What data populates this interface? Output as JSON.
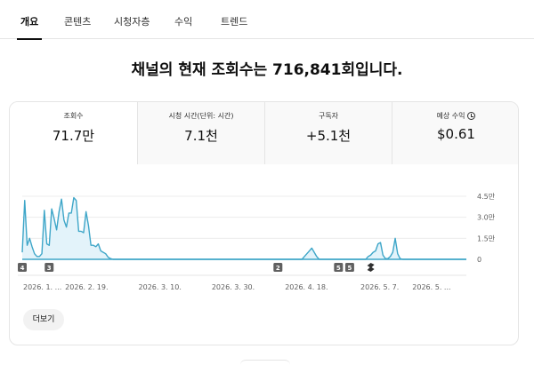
{
  "tabs": [
    {
      "label": "개요",
      "active": true
    },
    {
      "label": "콘텐츠",
      "active": false
    },
    {
      "label": "시청자층",
      "active": false
    },
    {
      "label": "수익",
      "active": false
    },
    {
      "label": "트렌드",
      "active": false
    }
  ],
  "headline": "채널의 현재 조회수는 716,841회입니다.",
  "metrics": [
    {
      "label": "조회수",
      "value": "71.7만",
      "selected": true
    },
    {
      "label": "시청 시간(단위: 시간)",
      "value": "7.1천",
      "selected": false
    },
    {
      "label": "구독자",
      "value": "+5.1천",
      "selected": false
    },
    {
      "label": "예상 수익",
      "value": "$0.61",
      "selected": false,
      "icon": "clock-icon"
    }
  ],
  "chart_data": {
    "type": "area",
    "y_ticks": [
      {
        "label": "4.5만",
        "value": 45000
      },
      {
        "label": "3.0만",
        "value": 30000
      },
      {
        "label": "1.5만",
        "value": 15000
      },
      {
        "label": "0",
        "value": 0
      }
    ],
    "ylim": [
      0,
      45000
    ],
    "x_labels": [
      "2026. 1. ...",
      "2026. 2. 19.",
      "2026. 3. 10.",
      "2026. 3. 30.",
      "2026. 4. 18.",
      "2026. 5. 7.",
      "2026. 5. ..."
    ],
    "x_label_positions": [
      0.015,
      0.145,
      0.31,
      0.475,
      0.64,
      0.805,
      0.965
    ],
    "series": [
      {
        "values": [
          5000,
          42000,
          10000,
          15000,
          9000,
          4000,
          2000,
          2000,
          4000,
          35000,
          11000,
          10000,
          36000,
          29000,
          21000,
          34000,
          43000,
          28000,
          23000,
          33000,
          33000,
          44000,
          42000,
          20000,
          20000,
          19000,
          34000,
          24000,
          10000,
          10000,
          9000,
          11000,
          6000,
          5000,
          4000,
          1500,
          500,
          0,
          0,
          0,
          0,
          0,
          0,
          0,
          0,
          0,
          0,
          0,
          0,
          0,
          0,
          0,
          0,
          0,
          0,
          0,
          0,
          0,
          0,
          0,
          0,
          0,
          0,
          0,
          0,
          0,
          0,
          0,
          0,
          0,
          0,
          0,
          0,
          0,
          0,
          0,
          0,
          0,
          0,
          0,
          0,
          0,
          0,
          0,
          0,
          0,
          0,
          0,
          0,
          0,
          0,
          0,
          0,
          0,
          0,
          0,
          0,
          0,
          0,
          0,
          0,
          0,
          0,
          0,
          0,
          0,
          0,
          0,
          0,
          0,
          0,
          0,
          0,
          0,
          0,
          2000,
          4000,
          6000,
          8000,
          5000,
          2000,
          0,
          0,
          0,
          0,
          0,
          0,
          0,
          0,
          0,
          0,
          0,
          0,
          0,
          0,
          0,
          0,
          0,
          0,
          0,
          0,
          2000,
          3000,
          5000,
          6000,
          11000,
          12000,
          3000,
          500,
          500,
          2000,
          5000,
          15000,
          4000,
          500,
          0,
          0,
          0,
          0,
          0,
          0,
          0,
          0,
          0,
          0,
          0,
          0,
          0,
          0,
          0,
          0,
          0,
          0,
          0,
          0,
          0,
          0,
          0,
          0,
          0,
          0,
          0
        ]
      }
    ],
    "markers": [
      {
        "label": "4",
        "position": 0.0,
        "icon": ""
      },
      {
        "label": "3",
        "position": 0.06,
        "icon": ""
      },
      {
        "label": "2",
        "position": 0.57,
        "icon": ""
      },
      {
        "label": "5",
        "position": 0.705,
        "icon": ""
      },
      {
        "label": "5",
        "position": 0.73,
        "icon": ""
      },
      {
        "label": "",
        "position": 0.775,
        "icon": "shorts-icon"
      }
    ],
    "line_color": "#3ea6c8",
    "fill_color": "#e3f3fa",
    "grid": true
  },
  "more_button": "더보기"
}
